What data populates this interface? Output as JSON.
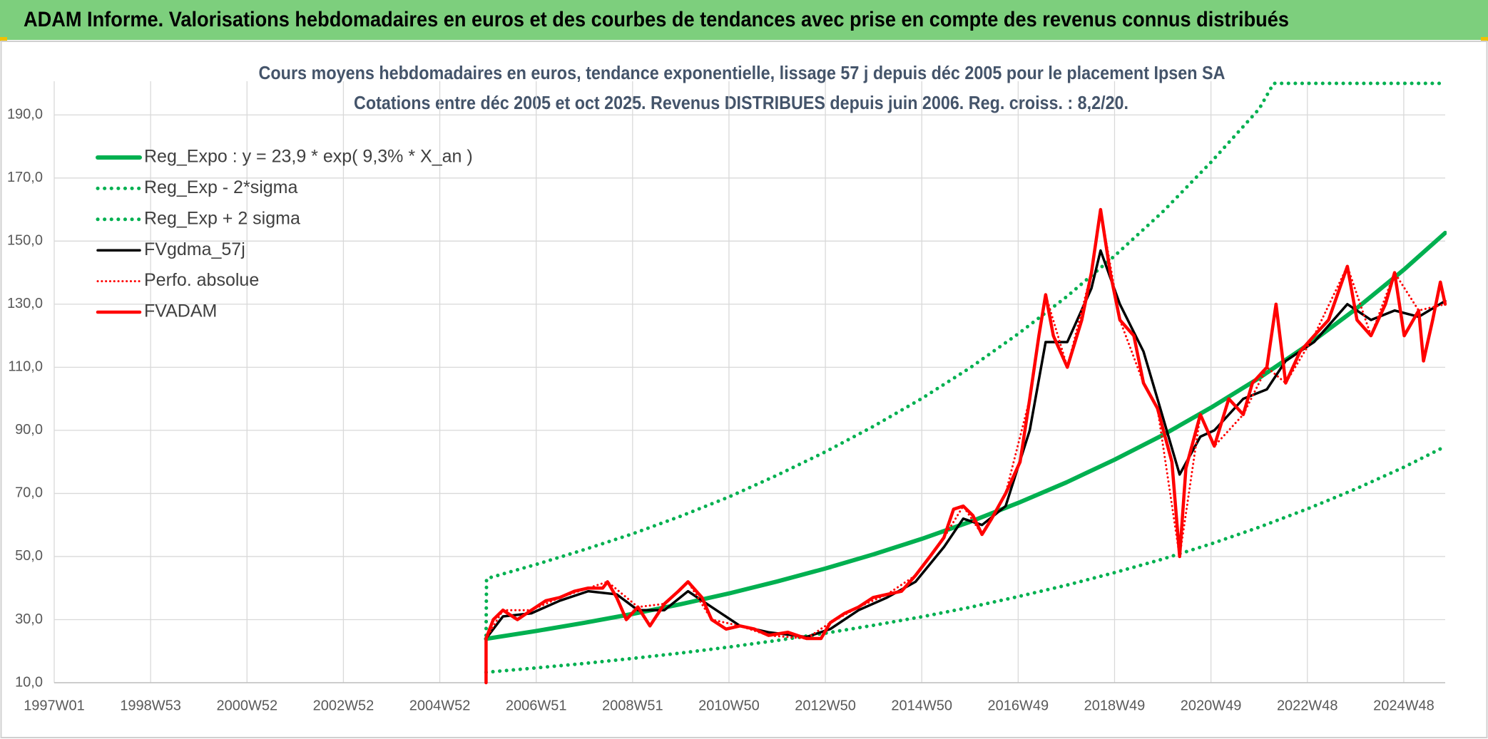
{
  "header": {
    "title": "ADAM Informe. Valorisations hebdomadaires en euros et des courbes de tendances avec prise en compte des revenus connus distribués"
  },
  "chart_data": {
    "type": "line",
    "title": "Cours moyens hebdomadaires en euros, tendance exponentielle, lissage 57 j depuis déc 2005 pour le placement Ipsen SA",
    "subtitle": "Cotations entre déc 2005 et oct 2025. Revenus DISTRIBUES depuis juin 2006. Reg. croiss. : 8,2/20.",
    "xlim": [
      1997,
      2025.86
    ],
    "xticks": [
      {
        "value": 1997,
        "label": "1997W01"
      },
      {
        "value": 1999,
        "label": "1998W53"
      },
      {
        "value": 2001,
        "label": "2000W52"
      },
      {
        "value": 2003,
        "label": "2002W52"
      },
      {
        "value": 2005,
        "label": "2004W52"
      },
      {
        "value": 2007,
        "label": "2006W51"
      },
      {
        "value": 2009,
        "label": "2008W51"
      },
      {
        "value": 2011,
        "label": "2010W50"
      },
      {
        "value": 2013,
        "label": "2012W50"
      },
      {
        "value": 2015,
        "label": "2014W50"
      },
      {
        "value": 2017,
        "label": "2016W49"
      },
      {
        "value": 2019,
        "label": "2018W49"
      },
      {
        "value": 2021,
        "label": "2020W49"
      },
      {
        "value": 2023,
        "label": "2022W48"
      },
      {
        "value": 2025,
        "label": "2024W48"
      }
    ],
    "ylim": [
      10,
      200
    ],
    "yticks": [
      {
        "value": 10,
        "label": "10,0"
      },
      {
        "value": 30,
        "label": "30,0"
      },
      {
        "value": 50,
        "label": "50,0"
      },
      {
        "value": 70,
        "label": "70,0"
      },
      {
        "value": 90,
        "label": "90,0"
      },
      {
        "value": 110,
        "label": "110,0"
      },
      {
        "value": 130,
        "label": "130,0"
      },
      {
        "value": 150,
        "label": "150,0"
      },
      {
        "value": 170,
        "label": "170,0"
      },
      {
        "value": 190,
        "label": "190,0"
      }
    ],
    "grid": true,
    "legend": "top-left",
    "series": [
      {
        "name": "Reg_Expo : y = 23,9 * exp( 9,3% *  X_an )",
        "color": "#00b050",
        "style": "solid",
        "width": 6,
        "x": [
          2005.96,
          2007,
          2008,
          2009,
          2010,
          2011,
          2012,
          2013,
          2014,
          2015,
          2016,
          2017,
          2018,
          2019,
          2020,
          2021,
          2022,
          2023,
          2024,
          2025,
          2025.86
        ],
        "values": [
          23.9,
          26.4,
          29.0,
          31.8,
          34.9,
          38.3,
          42.1,
          46.2,
          50.7,
          55.6,
          61.0,
          67.0,
          73.5,
          80.7,
          88.5,
          97.2,
          106.6,
          117.0,
          128.4,
          140.9,
          152.6
        ]
      },
      {
        "name": "Reg_Exp - 2*sigma",
        "color": "#00b050",
        "style": "dotted",
        "width": 5,
        "x": [
          2005.96,
          2007,
          2008,
          2009,
          2010,
          2011,
          2012,
          2013,
          2014,
          2015,
          2016,
          2017,
          2018,
          2019,
          2020,
          2021,
          2022,
          2023,
          2024,
          2025,
          2025.86
        ],
        "values": [
          13.3,
          14.7,
          16.1,
          17.7,
          19.4,
          21.3,
          23.4,
          25.7,
          28.2,
          30.9,
          33.9,
          37.3,
          40.9,
          44.9,
          49.2,
          54.0,
          59.3,
          65.1,
          71.4,
          78.3,
          84.9
        ]
      },
      {
        "name": "Reg_Exp + 2 sigma",
        "color": "#00b050",
        "style": "dotted",
        "width": 5,
        "x": [
          2005.96,
          2005.97,
          2007,
          2008,
          2009,
          2010,
          2011,
          2012,
          2013,
          2014,
          2015,
          2016,
          2017,
          2018,
          2019,
          2020,
          2021,
          2022,
          2022.3,
          2023,
          2024,
          2025,
          2025.86
        ],
        "values": [
          25,
          43.0,
          47.5,
          52.2,
          57.2,
          62.8,
          68.9,
          75.8,
          83.2,
          91.3,
          100.1,
          109.8,
          120.6,
          132.3,
          145.3,
          159.3,
          175.0,
          191.9,
          200,
          200,
          200,
          200,
          200
        ]
      },
      {
        "name": "FVgdma_57j",
        "color": "#000000",
        "style": "solid",
        "width": 3.5,
        "x": [
          2005.96,
          2006.31,
          2006.9,
          2007.49,
          2008.08,
          2008.67,
          2009.11,
          2009.66,
          2010.15,
          2010.64,
          2011.23,
          2011.82,
          2012.61,
          2013.1,
          2013.69,
          2014.28,
          2014.87,
          2015.46,
          2015.86,
          2016.25,
          2016.74,
          2017.24,
          2017.57,
          2018.02,
          2018.52,
          2018.71,
          2019.11,
          2019.6,
          2019.89,
          2020.35,
          2020.78,
          2021.07,
          2021.67,
          2022.16,
          2022.55,
          2023.14,
          2023.83,
          2024.32,
          2024.81,
          2025.31,
          2025.86
        ],
        "values": [
          24,
          31,
          32,
          36,
          39,
          38,
          33,
          33,
          39,
          34,
          28,
          26,
          24.5,
          27,
          33,
          37,
          42,
          53,
          62,
          60,
          66,
          90,
          118,
          118,
          135,
          147,
          130,
          115,
          100,
          76,
          88,
          90,
          100,
          103,
          112,
          118,
          130,
          125,
          128,
          126,
          131
        ]
      },
      {
        "name": "Perfo. absolue",
        "color": "#ff0000",
        "style": "dotted",
        "width": 3,
        "x": [
          2005.96,
          2006.31,
          2006.9,
          2007.49,
          2008.08,
          2008.48,
          2009.11,
          2009.66,
          2010.15,
          2010.64,
          2011.23,
          2011.82,
          2012.61,
          2013.1,
          2013.69,
          2014.28,
          2014.87,
          2015.46,
          2015.86,
          2016.25,
          2016.74,
          2017.24,
          2017.57,
          2018.02,
          2018.52,
          2018.71,
          2019.11,
          2019.6,
          2019.89,
          2020.35,
          2020.78,
          2021.07,
          2021.67,
          2022.16,
          2022.55,
          2023.14,
          2023.83,
          2024.32,
          2024.81,
          2025.31,
          2025.86
        ],
        "values": [
          24,
          33,
          33,
          37,
          40,
          42,
          34,
          35,
          42,
          30,
          28,
          25,
          24,
          29,
          34,
          38,
          44,
          56,
          66,
          57,
          70,
          100,
          133,
          110,
          140,
          160,
          125,
          105,
          97,
          50,
          95,
          85,
          95,
          110,
          105,
          120,
          142,
          120,
          140,
          128,
          130
        ]
      },
      {
        "name": "FVADAM",
        "color": "#ff0000",
        "style": "solid",
        "width": 4.5,
        "x": [
          2005.96,
          2005.96,
          2006.11,
          2006.31,
          2006.61,
          2006.9,
          2007.2,
          2007.49,
          2007.79,
          2008.08,
          2008.38,
          2008.48,
          2008.67,
          2008.87,
          2009.11,
          2009.36,
          2009.66,
          2009.95,
          2010.15,
          2010.44,
          2010.64,
          2010.94,
          2011.23,
          2011.53,
          2011.82,
          2012.22,
          2012.61,
          2012.91,
          2013.1,
          2013.4,
          2013.69,
          2013.99,
          2014.28,
          2014.58,
          2014.87,
          2015.17,
          2015.46,
          2015.66,
          2015.86,
          2016.06,
          2016.25,
          2016.45,
          2016.74,
          2017.04,
          2017.24,
          2017.43,
          2017.57,
          2017.73,
          2018.02,
          2018.32,
          2018.52,
          2018.71,
          2018.91,
          2019.11,
          2019.4,
          2019.6,
          2019.89,
          2020.19,
          2020.35,
          2020.48,
          2020.78,
          2021.07,
          2021.37,
          2021.67,
          2021.86,
          2022.16,
          2022.35,
          2022.55,
          2022.85,
          2023.14,
          2023.44,
          2023.83,
          2024.03,
          2024.32,
          2024.62,
          2024.81,
          2025.01,
          2025.31,
          2025.41,
          2025.6,
          2025.76,
          2025.86
        ],
        "values": [
          10,
          24,
          30,
          33,
          30,
          33,
          36,
          37,
          39,
          40,
          40,
          42,
          37,
          30,
          34,
          28,
          35,
          39,
          42,
          37,
          30,
          27,
          28,
          27,
          25,
          26,
          24,
          24,
          29,
          32,
          34,
          37,
          38,
          39,
          44,
          50,
          56,
          65,
          66,
          63,
          57,
          62,
          70,
          80,
          100,
          120,
          133,
          120,
          110,
          125,
          140,
          160,
          140,
          125,
          120,
          105,
          97,
          80,
          50,
          78,
          95,
          85,
          100,
          95,
          105,
          110,
          130,
          105,
          115,
          120,
          125,
          142,
          125,
          120,
          130,
          140,
          120,
          128,
          112,
          125,
          137,
          130
        ]
      }
    ]
  }
}
